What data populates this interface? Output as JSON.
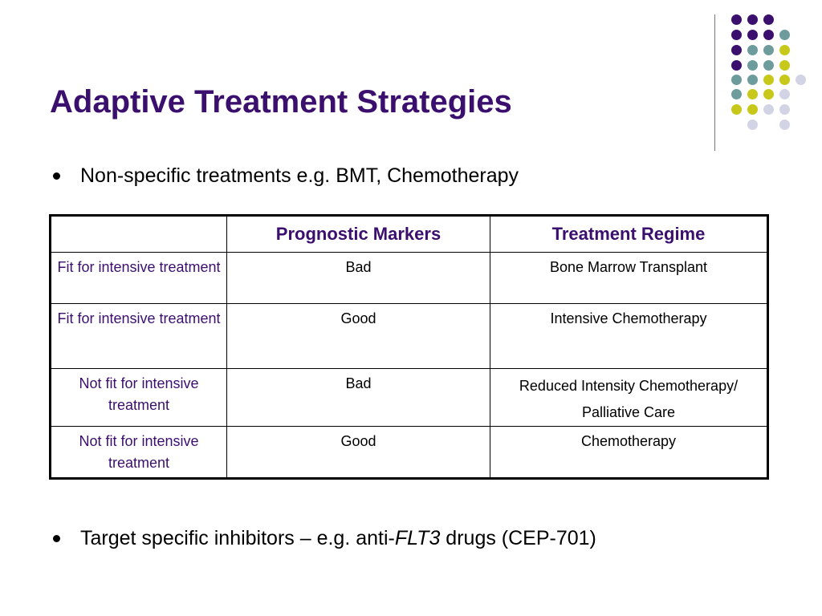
{
  "slide": {
    "title": "Adaptive Treatment Strategies",
    "bullets": [
      {
        "text": "Non-specific treatments e.g. BMT, Chemotherapy"
      },
      {
        "prefix": "Target specific inhibitors – e.g. anti-",
        "italic": "FLT3",
        "suffix": " drugs (CEP-701)"
      }
    ],
    "table": {
      "headers": [
        "",
        "Prognostic Markers",
        "Treatment Regime"
      ],
      "rows": [
        {
          "condition": "Fit for intensive treatment",
          "markers": "Bad",
          "regime": "Bone Marrow Transplant"
        },
        {
          "condition": "Fit for intensive treatment",
          "markers": "Good",
          "regime": "Intensive Chemotherapy"
        },
        {
          "condition": "Not fit for intensive treatment",
          "markers": "Bad",
          "regime": "Reduced Intensity Chemotherapy/ Palliative Care"
        },
        {
          "condition": "Not fit for intensive treatment",
          "markers": "Good",
          "regime": "Chemotherapy"
        }
      ]
    },
    "colors": {
      "title": "#3b0f6e",
      "dot_purple": "#3b0f6e",
      "dot_teal": "#6e9c9c",
      "dot_lime": "#c8c81a",
      "dot_lavender": "#d3d3e6"
    }
  }
}
